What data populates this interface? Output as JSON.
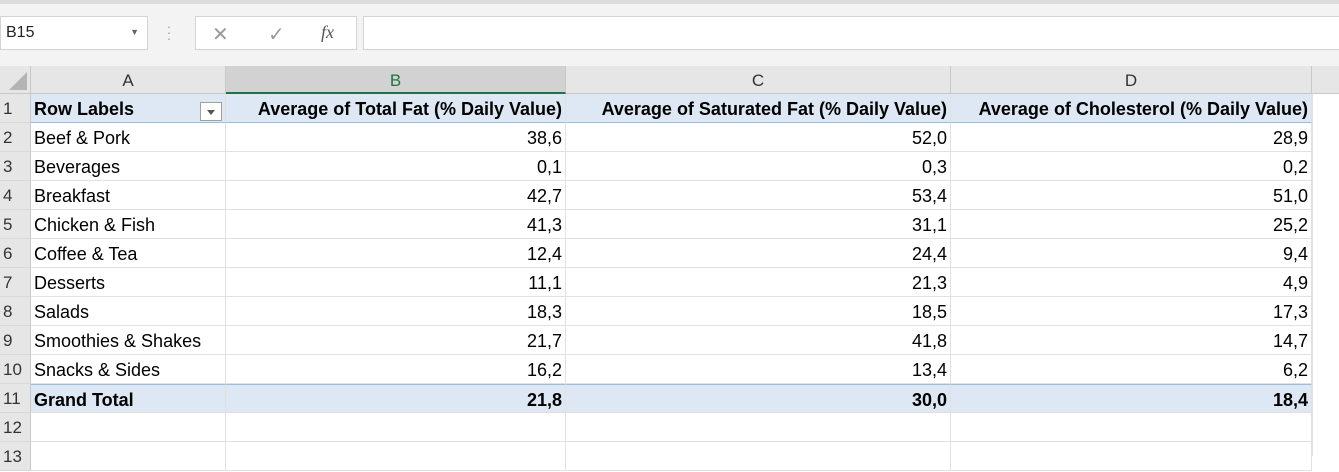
{
  "formula_bar": {
    "name_box": "B15",
    "cancel_icon": "✕",
    "enter_icon": "✓",
    "function_icon": "fx",
    "formula_value": ""
  },
  "columns": [
    "A",
    "B",
    "C",
    "D"
  ],
  "selected_column": "B",
  "row_numbers": [
    "1",
    "2",
    "3",
    "4",
    "5",
    "6",
    "7",
    "8",
    "9",
    "10",
    "11",
    "12",
    "13"
  ],
  "pivot": {
    "headers": [
      "Row Labels",
      "Average of Total Fat (% Daily Value)",
      "Average of Saturated Fat (% Daily Value)",
      "Average of Cholesterol (% Daily Value)"
    ],
    "rows": [
      {
        "label": "Beef & Pork",
        "total_fat": "38,6",
        "sat_fat": "52,0",
        "cholesterol": "28,9"
      },
      {
        "label": "Beverages",
        "total_fat": "0,1",
        "sat_fat": "0,3",
        "cholesterol": "0,2"
      },
      {
        "label": "Breakfast",
        "total_fat": "42,7",
        "sat_fat": "53,4",
        "cholesterol": "51,0"
      },
      {
        "label": "Chicken & Fish",
        "total_fat": "41,3",
        "sat_fat": "31,1",
        "cholesterol": "25,2"
      },
      {
        "label": "Coffee & Tea",
        "total_fat": "12,4",
        "sat_fat": "24,4",
        "cholesterol": "9,4"
      },
      {
        "label": "Desserts",
        "total_fat": "11,1",
        "sat_fat": "21,3",
        "cholesterol": "4,9"
      },
      {
        "label": "Salads",
        "total_fat": "18,3",
        "sat_fat": "18,5",
        "cholesterol": "17,3"
      },
      {
        "label": "Smoothies & Shakes",
        "total_fat": "21,7",
        "sat_fat": "41,8",
        "cholesterol": "14,7"
      },
      {
        "label": "Snacks & Sides",
        "total_fat": "16,2",
        "sat_fat": "13,4",
        "cholesterol": "6,2"
      }
    ],
    "grand_total": {
      "label": "Grand Total",
      "total_fat": "21,8",
      "sat_fat": "30,0",
      "cholesterol": "18,4"
    }
  },
  "colors": {
    "pivot_header_bg": "#dde8f4",
    "selected_col_accent": "#217346"
  }
}
